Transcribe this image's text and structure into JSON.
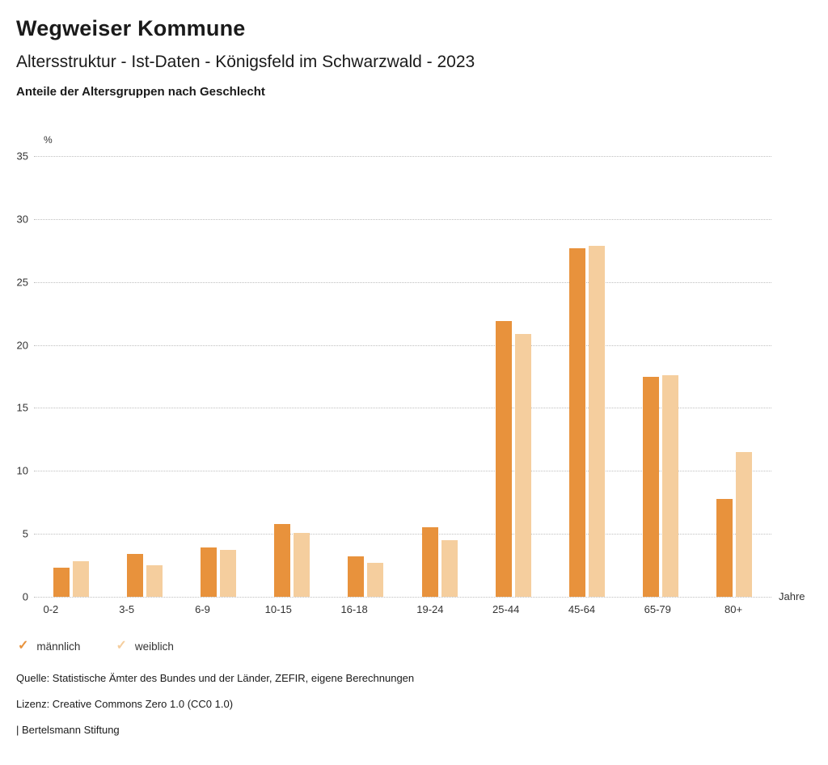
{
  "header": {
    "title": "Wegweiser Kommune",
    "subtitle": "Altersstruktur - Ist-Daten - Königsfeld im Schwarzwald - 2023",
    "subsubtitle": "Anteile der Altersgruppen nach Geschlecht"
  },
  "chart_data": {
    "type": "bar",
    "title": "Anteile der Altersgruppen nach Geschlecht",
    "categories": [
      "0-2",
      "3-5",
      "6-9",
      "10-15",
      "16-18",
      "19-24",
      "25-44",
      "45-64",
      "65-79",
      "80+"
    ],
    "series": [
      {
        "name": "männlich",
        "color": "#E8923C",
        "values": [
          2.3,
          3.4,
          3.9,
          5.8,
          3.2,
          5.5,
          21.9,
          27.7,
          17.5,
          7.8
        ]
      },
      {
        "name": "weiblich",
        "color": "#F5CE9E",
        "values": [
          2.8,
          2.5,
          3.7,
          5.1,
          2.7,
          4.5,
          20.9,
          27.9,
          17.6,
          11.5
        ]
      }
    ],
    "xlabel": "Jahre",
    "ylabel": "%",
    "ylim": [
      0,
      35
    ],
    "yticks": [
      0,
      5,
      10,
      15,
      20,
      25,
      30,
      35
    ],
    "grid": "horizontal-dotted",
    "legend_position": "bottom-left"
  },
  "legend": {
    "items": [
      {
        "label": "männlich",
        "color": "#E8923C"
      },
      {
        "label": "weiblich",
        "color": "#F5CE9E"
      }
    ]
  },
  "footer": {
    "source": "Quelle: Statistische Ämter des Bundes und der Länder, ZEFIR, eigene Berechnungen",
    "license": "Lizenz: Creative Commons Zero 1.0 (CC0 1.0)",
    "brand": "| Bertelsmann Stiftung"
  }
}
